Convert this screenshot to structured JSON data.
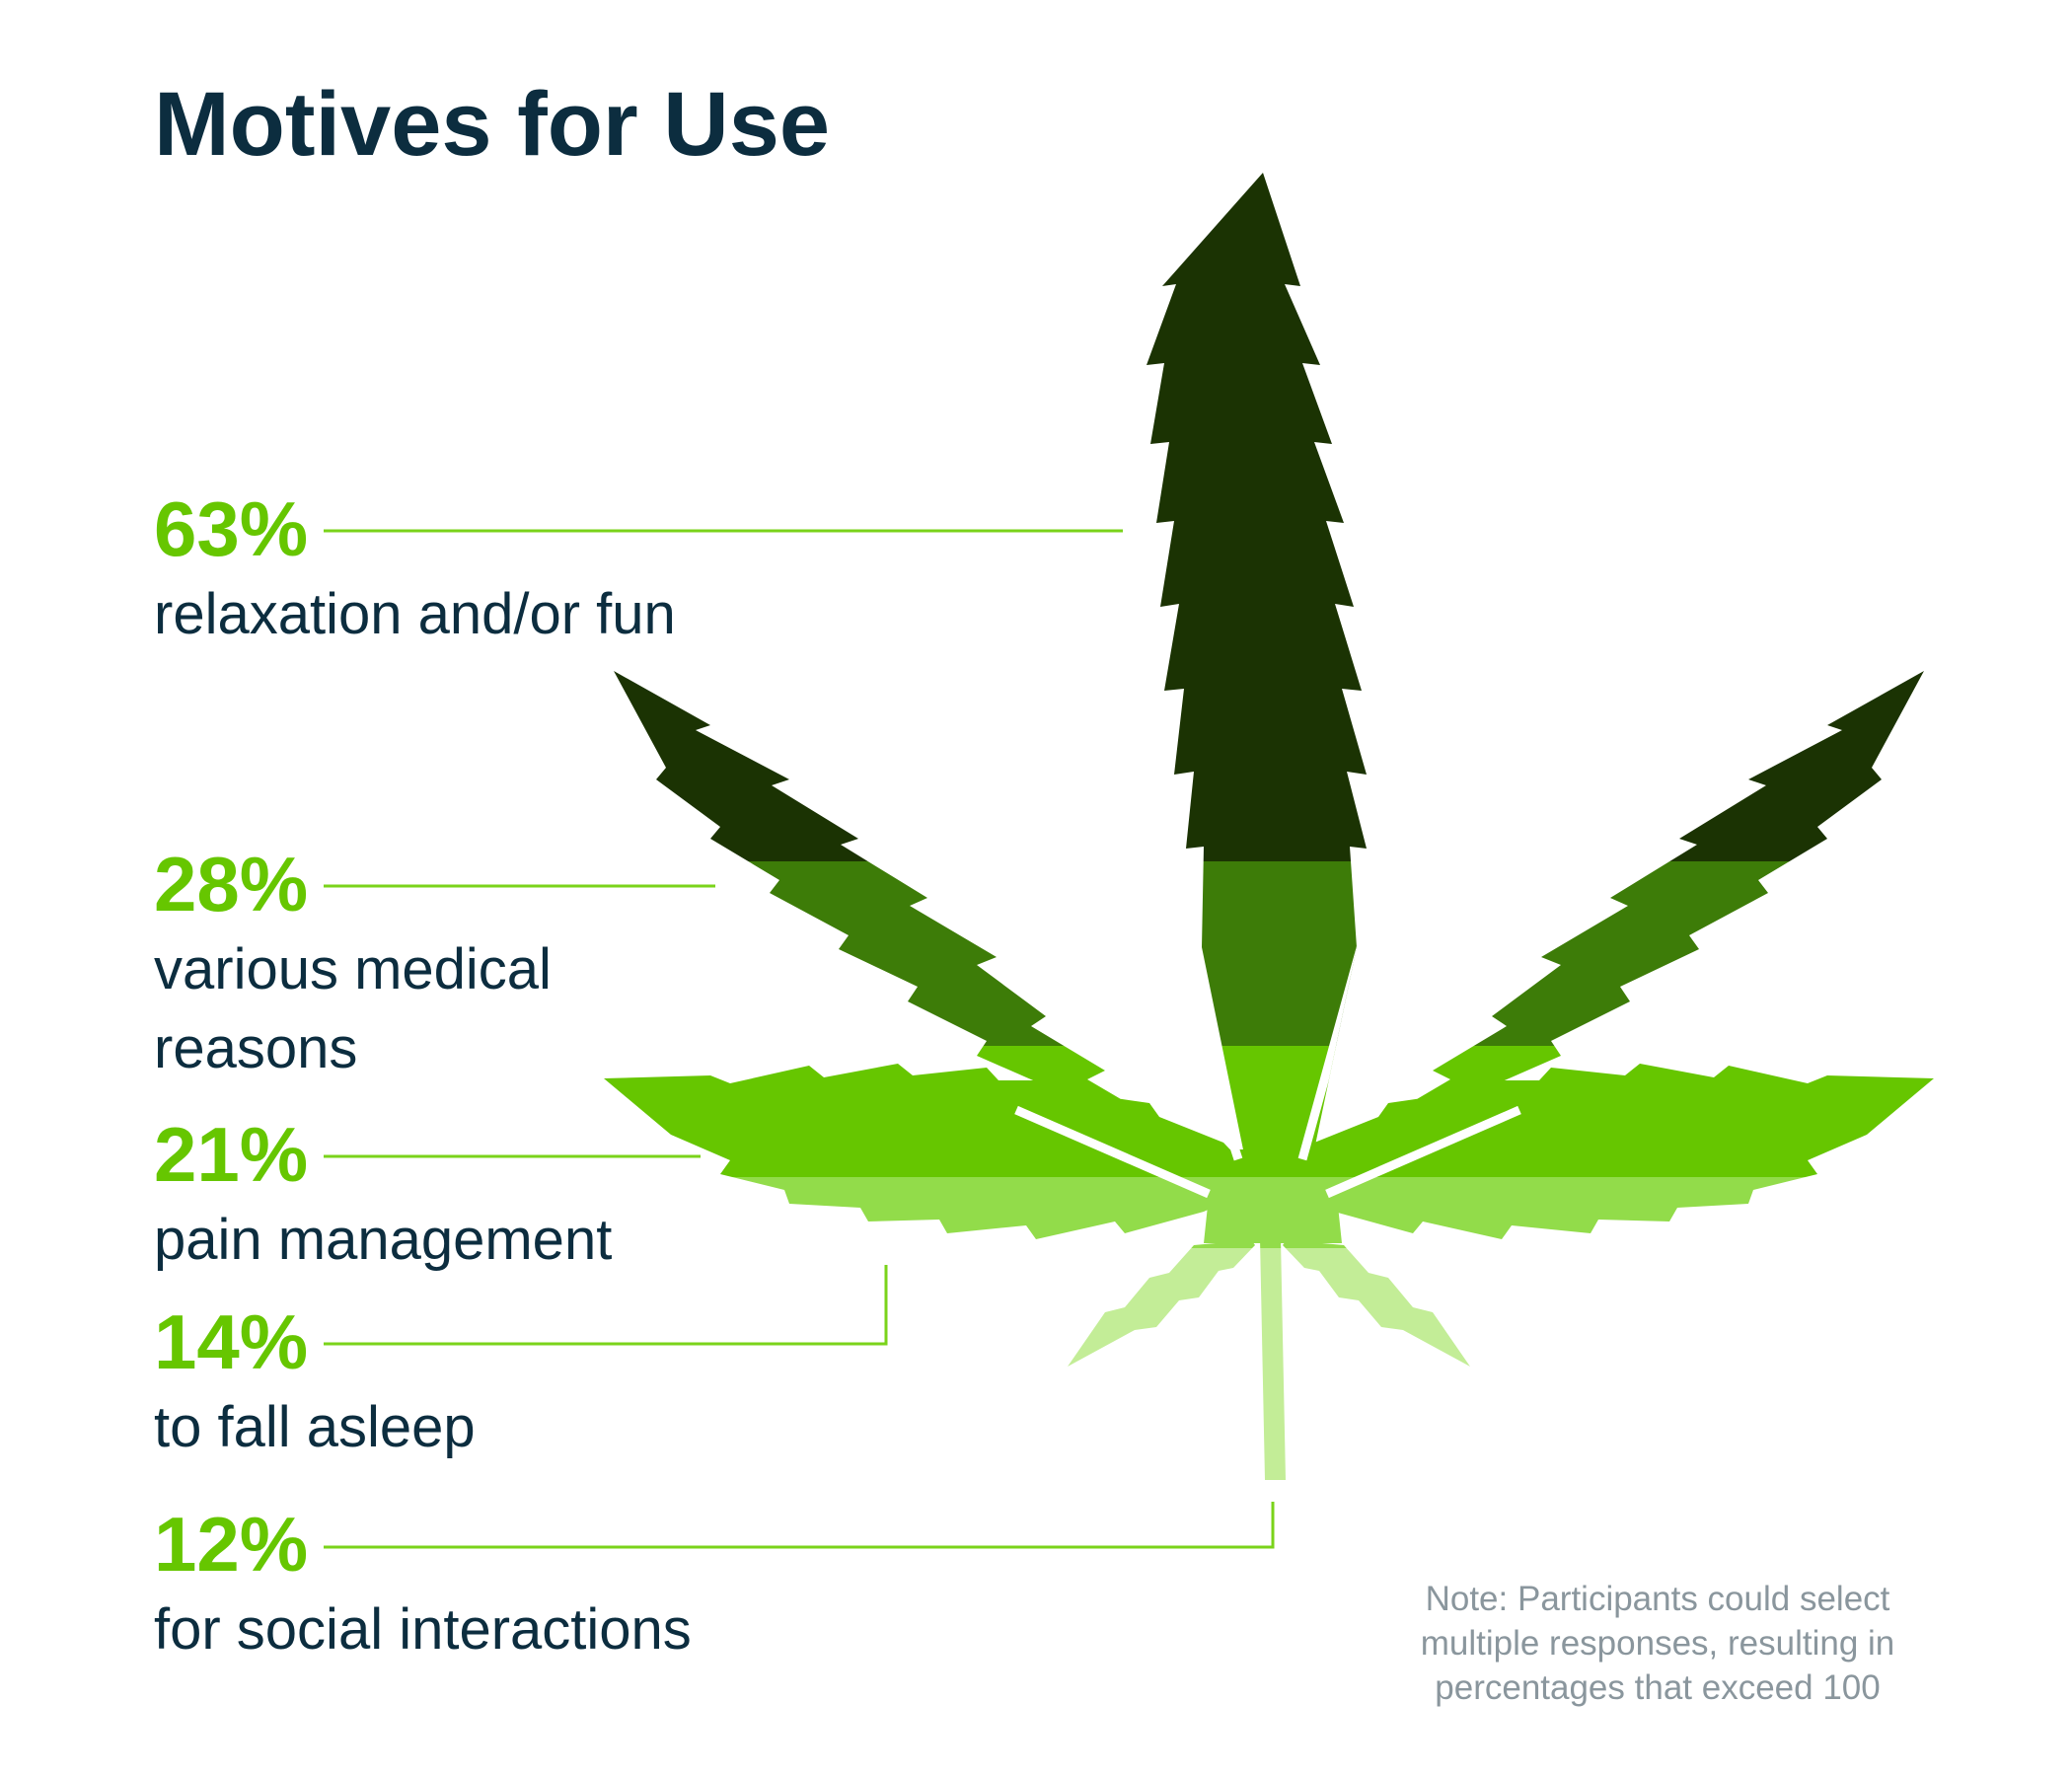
{
  "chart_data": {
    "type": "bar",
    "title": "Motives for Use",
    "unit": "%",
    "categories": [
      "relaxation and/or fun",
      "various medical reasons",
      "pain management",
      "to fall asleep",
      "for social interactions"
    ],
    "values": [
      63,
      28,
      21,
      14,
      12
    ],
    "labels": [
      {
        "value_label": "63%",
        "lines": [
          "relaxation and/or fun"
        ],
        "color": "#1b3303"
      },
      {
        "value_label": "28%",
        "lines": [
          "various medical",
          "reasons"
        ],
        "color": "#3d7c08"
      },
      {
        "value_label": "21%",
        "lines": [
          "pain management"
        ],
        "color": "#66c600"
      },
      {
        "value_label": "14%",
        "lines": [
          "to fall asleep"
        ],
        "color": "#92dc4a"
      },
      {
        "value_label": "12%",
        "lines": [
          "for social interactions"
        ],
        "color": "#c3ed97"
      }
    ],
    "note": "Note: Participants could select multiple responses, resulting in percentages that exceed 100"
  },
  "colors": {
    "title": "#0c2d3f",
    "percent": "#66c600",
    "text": "#0c2d3f",
    "leader_line": "#7ad31a",
    "note": "#8a969d"
  }
}
